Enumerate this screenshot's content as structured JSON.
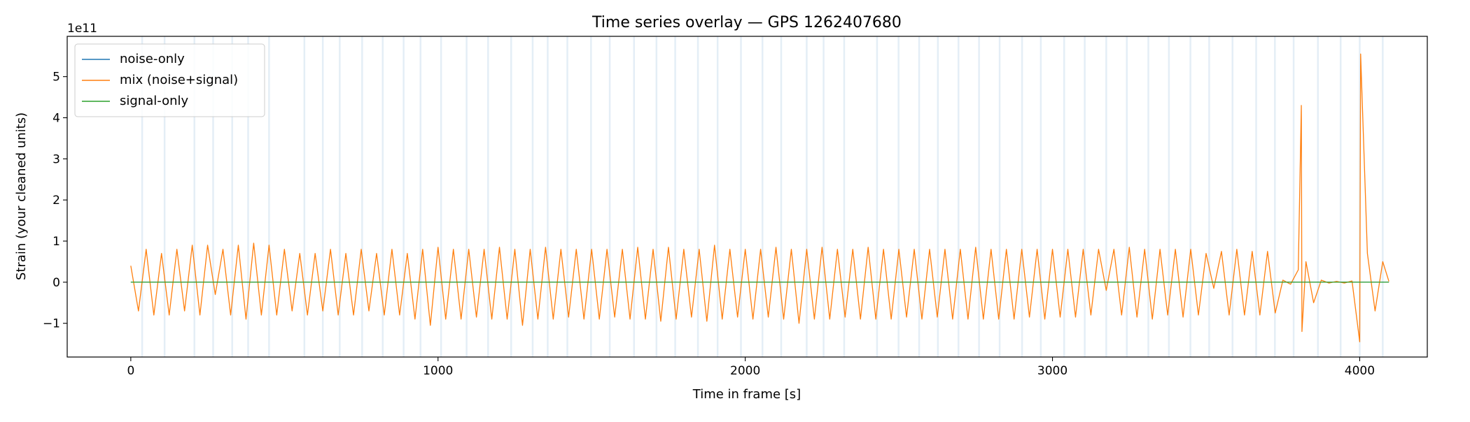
{
  "chart_data": {
    "type": "line",
    "title": "Time series overlay — GPS 1262407680",
    "xlabel": "Time in frame [s]",
    "ylabel": "Strain (your cleaned units)",
    "y_offset_label": "1e11",
    "xlim": [
      -207,
      4220
    ],
    "ylim": [
      -1.82,
      5.98
    ],
    "xticks": [
      0,
      1000,
      2000,
      3000,
      4000
    ],
    "yticks": [
      {
        "value": -1,
        "label": "−1"
      },
      0,
      1,
      2,
      3,
      4,
      5
    ],
    "legend": "upper left",
    "vline_color": "#1f77b4",
    "vlines": [
      37,
      110,
      207,
      268,
      330,
      382,
      450,
      565,
      625,
      680,
      753,
      820,
      888,
      943,
      1010,
      1093,
      1163,
      1238,
      1308,
      1357,
      1421,
      1498,
      1559,
      1638,
      1711,
      1772,
      1846,
      1910,
      1986,
      2056,
      2117,
      2200,
      2255,
      2322,
      2429,
      2499,
      2566,
      2627,
      2694,
      2761,
      2828,
      2901,
      2962,
      3038,
      3105,
      3175,
      3242,
      3312,
      3379,
      3449,
      3510,
      3586,
      3663,
      3724,
      3785,
      3864,
      3938,
      4000,
      4075
    ],
    "series": [
      {
        "name": "noise-only",
        "color": "#1f77b4",
        "x": [
          0,
          4095
        ],
        "values": [
          0,
          0
        ]
      },
      {
        "name": "mix (noise+signal)",
        "color": "#ff7f0e",
        "x": [
          0,
          25,
          50,
          75,
          100,
          125,
          150,
          175,
          200,
          225,
          250,
          275,
          300,
          325,
          350,
          375,
          400,
          425,
          450,
          475,
          500,
          525,
          550,
          575,
          600,
          625,
          650,
          675,
          700,
          725,
          750,
          775,
          800,
          825,
          850,
          875,
          900,
          925,
          950,
          975,
          1000,
          1025,
          1050,
          1075,
          1100,
          1125,
          1150,
          1175,
          1200,
          1225,
          1250,
          1275,
          1300,
          1325,
          1350,
          1375,
          1400,
          1425,
          1450,
          1475,
          1500,
          1525,
          1550,
          1575,
          1600,
          1625,
          1650,
          1675,
          1700,
          1725,
          1750,
          1775,
          1800,
          1825,
          1850,
          1875,
          1900,
          1925,
          1950,
          1975,
          2000,
          2025,
          2050,
          2075,
          2100,
          2125,
          2150,
          2175,
          2200,
          2225,
          2250,
          2275,
          2300,
          2325,
          2350,
          2375,
          2400,
          2425,
          2450,
          2475,
          2500,
          2525,
          2550,
          2575,
          2600,
          2625,
          2650,
          2675,
          2700,
          2725,
          2750,
          2775,
          2800,
          2825,
          2850,
          2875,
          2900,
          2925,
          2950,
          2975,
          3000,
          3025,
          3050,
          3075,
          3100,
          3125,
          3150,
          3175,
          3200,
          3225,
          3250,
          3275,
          3300,
          3325,
          3350,
          3375,
          3400,
          3425,
          3450,
          3475,
          3500,
          3525,
          3550,
          3575,
          3600,
          3625,
          3650,
          3675,
          3700,
          3725,
          3750,
          3775,
          3800,
          3810,
          3812,
          3825,
          3850,
          3875,
          3900,
          3925,
          3950,
          3975,
          4000,
          4003,
          4025,
          4050,
          4075,
          4095
        ],
        "values": [
          0.4,
          -0.7,
          0.8,
          -0.8,
          0.7,
          -0.8,
          0.8,
          -0.7,
          0.9,
          -0.8,
          0.9,
          -0.3,
          0.8,
          -0.8,
          0.9,
          -0.9,
          0.95,
          -0.8,
          0.9,
          -0.8,
          0.8,
          -0.7,
          0.7,
          -0.8,
          0.7,
          -0.7,
          0.8,
          -0.8,
          0.7,
          -0.8,
          0.8,
          -0.7,
          0.7,
          -0.8,
          0.8,
          -0.8,
          0.7,
          -0.9,
          0.8,
          -1.05,
          0.85,
          -0.9,
          0.8,
          -0.9,
          0.8,
          -0.85,
          0.8,
          -0.9,
          0.85,
          -0.9,
          0.8,
          -1.05,
          0.8,
          -0.9,
          0.85,
          -0.9,
          0.8,
          -0.85,
          0.8,
          -0.9,
          0.8,
          -0.9,
          0.8,
          -0.85,
          0.8,
          -0.9,
          0.85,
          -0.9,
          0.8,
          -0.95,
          0.85,
          -0.9,
          0.8,
          -0.85,
          0.8,
          -0.95,
          0.9,
          -0.9,
          0.8,
          -0.85,
          0.8,
          -0.9,
          0.8,
          -0.85,
          0.85,
          -0.9,
          0.8,
          -1.0,
          0.8,
          -0.9,
          0.85,
          -0.9,
          0.8,
          -0.85,
          0.8,
          -0.9,
          0.85,
          -0.9,
          0.8,
          -0.9,
          0.8,
          -0.85,
          0.8,
          -0.9,
          0.8,
          -0.85,
          0.8,
          -0.9,
          0.8,
          -0.9,
          0.85,
          -0.9,
          0.8,
          -0.9,
          0.8,
          -0.9,
          0.8,
          -0.85,
          0.8,
          -0.9,
          0.8,
          -0.85,
          0.8,
          -0.85,
          0.8,
          -0.8,
          0.8,
          -0.2,
          0.8,
          -0.8,
          0.85,
          -0.85,
          0.8,
          -0.9,
          0.8,
          -0.8,
          0.8,
          -0.85,
          0.8,
          -0.8,
          0.7,
          -0.15,
          0.75,
          -0.8,
          0.8,
          -0.8,
          0.75,
          -0.8,
          0.75,
          -0.75,
          0.05,
          -0.05,
          0.3,
          4.3,
          -1.2,
          0.5,
          -0.5,
          0.05,
          -0.02,
          0.02,
          -0.02,
          0.03,
          -1.45,
          5.55,
          0.7,
          -0.7,
          0.5,
          0.02
        ]
      },
      {
        "name": "signal-only",
        "color": "#2ca02c",
        "x": [
          0,
          4095
        ],
        "values": [
          0,
          0
        ]
      }
    ]
  }
}
